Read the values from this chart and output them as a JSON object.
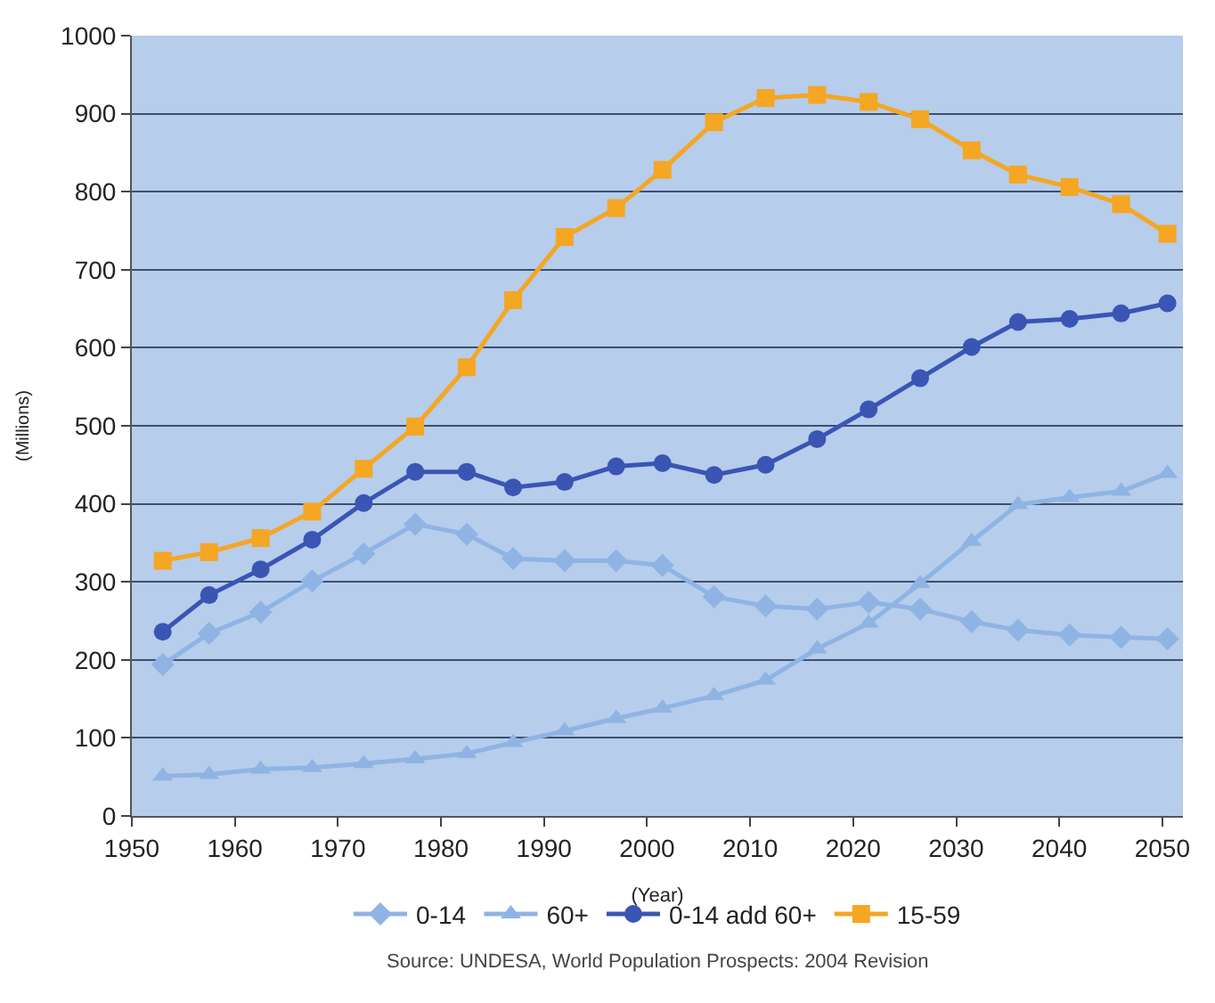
{
  "chart_data": {
    "type": "line",
    "xlabel": "(Year)",
    "ylabel": "(Millions)",
    "x": [
      1953,
      1957.5,
      1962.5,
      1967.5,
      1972.5,
      1977.5,
      1982.5,
      1987,
      1992,
      1997,
      2001.5,
      2006.5,
      2011.5,
      2016.5,
      2021.5,
      2026.5,
      2031.5,
      2036,
      2041,
      2046,
      2050.5
    ],
    "series": [
      {
        "name": "0-14",
        "color": "#8fb4e3",
        "marker": "diamond",
        "values": [
          194,
          234,
          261,
          301,
          336,
          374,
          361,
          330,
          327,
          327,
          321,
          281,
          269,
          265,
          274,
          265,
          249,
          238,
          232,
          229,
          227
        ]
      },
      {
        "name": "60+",
        "color": "#8fb4e3",
        "marker": "triangle",
        "values": [
          51,
          53,
          60,
          62,
          67,
          73,
          80,
          94,
          109,
          125,
          138,
          154,
          174,
          214,
          247,
          298,
          352,
          399,
          408,
          416,
          439
        ]
      },
      {
        "name": "0-14 add 60+",
        "color": "#3a55b4",
        "marker": "circle",
        "values": [
          236,
          283,
          316,
          354,
          401,
          441,
          441,
          421,
          428,
          448,
          452,
          437,
          450,
          483,
          521,
          561,
          601,
          633,
          637,
          644,
          657
        ]
      },
      {
        "name": "15-59",
        "color": "#f5a623",
        "marker": "square",
        "values": [
          327,
          338,
          356,
          390,
          445,
          499,
          575,
          661,
          742,
          779,
          828,
          889,
          920,
          924,
          915,
          893,
          853,
          822,
          806,
          784,
          746
        ]
      }
    ],
    "xlim": [
      1950,
      2052
    ],
    "xticks": [
      1950,
      1960,
      1970,
      1980,
      1990,
      2000,
      2010,
      2020,
      2030,
      2040,
      2050
    ],
    "ylim": [
      0,
      1000
    ],
    "yticks": [
      0,
      100,
      200,
      300,
      400,
      500,
      600,
      700,
      800,
      900,
      1000
    ],
    "grid": "y",
    "legend": "bottom",
    "line_style": "solid",
    "annotations": [
      "Source: UNDESA, World Population Prospects: 2004 Revision"
    ]
  }
}
